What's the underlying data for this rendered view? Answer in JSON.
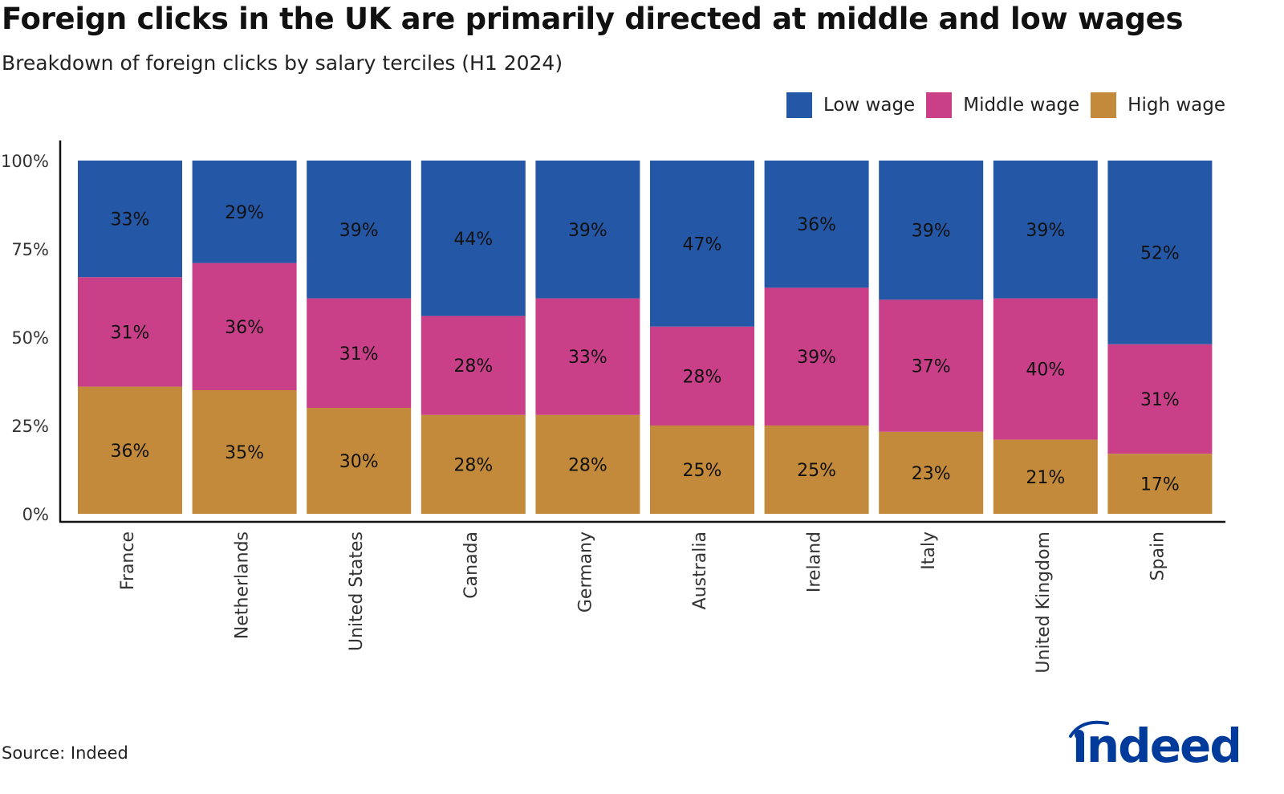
{
  "title": "Foreign clicks in the UK are primarily directed at middle and low wages",
  "subtitle": "Breakdown of foreign clicks by salary terciles (H1 2024)",
  "source": "Source: Indeed",
  "logo": "indeed",
  "chart_data": {
    "type": "bar",
    "stacked": true,
    "orientation": "vertical",
    "categories": [
      "France",
      "Netherlands",
      "United States",
      "Canada",
      "Germany",
      "Australia",
      "Ireland",
      "Italy",
      "United Kingdom",
      "Spain"
    ],
    "series": [
      {
        "name": "Low wage",
        "color": "#2557a7",
        "values": [
          33,
          29,
          39,
          44,
          39,
          47,
          36,
          39,
          39,
          52
        ]
      },
      {
        "name": "Middle wage",
        "color": "#c94088",
        "values": [
          31,
          36,
          31,
          28,
          33,
          28,
          39,
          37,
          40,
          31
        ]
      },
      {
        "name": "High wage",
        "color": "#c28a3a",
        "values": [
          36,
          35,
          30,
          28,
          28,
          25,
          25,
          23,
          21,
          17
        ]
      }
    ],
    "stack_order_bottom_to_top": [
      "High wage",
      "Middle wage",
      "Low wage"
    ],
    "yticks": [
      "0%",
      "25%",
      "50%",
      "75%",
      "100%"
    ],
    "ylim": [
      0,
      100
    ],
    "grid": false,
    "legend": "top-right",
    "data_labels": true
  }
}
